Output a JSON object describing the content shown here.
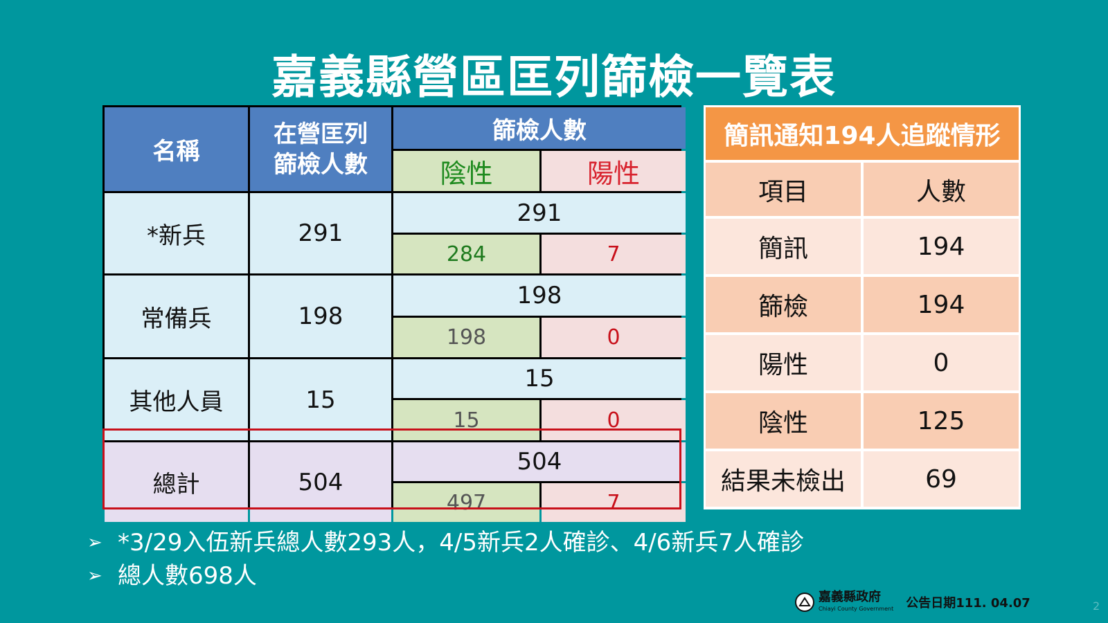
{
  "title": "嘉義縣營區匡列篩檢一覽表",
  "left_table": {
    "headers": {
      "name": "名稱",
      "listed_line1": "在營匡列",
      "listed_line2": "篩檢人數",
      "screened": "篩檢人數",
      "negative": "陰性",
      "positive": "陽性"
    },
    "rows": [
      {
        "name": "*新兵",
        "listed": "291",
        "screened": "291",
        "negative": "284",
        "positive": "7"
      },
      {
        "name": "常備兵",
        "listed": "198",
        "screened": "198",
        "negative": "198",
        "positive": "0"
      },
      {
        "name": "其他人員",
        "listed": "15",
        "screened": "15",
        "negative": "15",
        "positive": "0"
      },
      {
        "name": "總計",
        "listed": "504",
        "screened": "504",
        "negative": "497",
        "positive": "7"
      }
    ]
  },
  "right_table": {
    "title": "簡訊通知194人追蹤情形",
    "headers": {
      "item": "項目",
      "count": "人數"
    },
    "rows": [
      {
        "item": "簡訊",
        "count": "194"
      },
      {
        "item": "篩檢",
        "count": "194"
      },
      {
        "item": "陽性",
        "count": "0"
      },
      {
        "item": "陰性",
        "count": "125"
      },
      {
        "item": "結果未檢出",
        "count": "69"
      }
    ]
  },
  "notes": [
    "*3/29入伍新兵總人數293人，4/5新兵2人確診、4/6新兵7人確診",
    "總人數698人"
  ],
  "footer": {
    "org_name": "嘉義縣政府",
    "org_name_en": "Chiayi County Government",
    "date": "公告日期111. 04.07",
    "page_number": "2"
  },
  "colors": {
    "background": "#00979e",
    "header_blue": "#4f7fc0",
    "orange": "#f49645",
    "negative_green": "#1e8a1e",
    "positive_red": "#d8222e"
  }
}
